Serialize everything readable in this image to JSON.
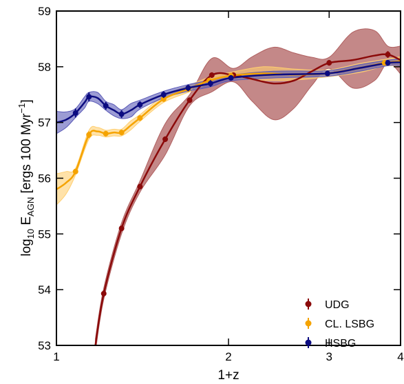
{
  "chart_data": {
    "type": "line",
    "title": "",
    "xlabel": "1+z",
    "ylabel": "log10 E_AGN [ergs 100 Myr^-1]",
    "ylabel_parts": {
      "pre": "log",
      "sub1": "10",
      "mid": " E",
      "sub2": "AGN",
      "unit": " [ergs 100 Myr",
      "sup": "−1",
      "close": "]"
    },
    "x_scale": "log",
    "xlim": [
      1,
      4
    ],
    "ylim": [
      53,
      59
    ],
    "x_ticks": [
      1,
      2,
      3,
      4
    ],
    "x_tick_labels": [
      "1",
      "2",
      "3",
      "4"
    ],
    "y_ticks": [
      53,
      54,
      55,
      56,
      57,
      58,
      59
    ],
    "y_tick_labels": [
      "53",
      "54",
      "55",
      "56",
      "57",
      "58",
      "59"
    ],
    "legend_position": "lower-right",
    "series": [
      {
        "name": "UDG",
        "color": "#8b0a0a",
        "band_color": "#b06060",
        "x": [
          1.21,
          1.3,
          1.4,
          1.55,
          1.71,
          1.87,
          2.04,
          3.0,
          3.8
        ],
        "y": [
          53.93,
          55.1,
          55.85,
          56.7,
          57.4,
          57.85,
          57.85,
          58.07,
          58.22
        ],
        "yerr": [
          0.06,
          0.05,
          0.05,
          0.05,
          0.05,
          0.05,
          0.05,
          0.05,
          0.06
        ],
        "curve_x": [
          1.17,
          1.21,
          1.3,
          1.4,
          1.55,
          1.71,
          1.87,
          2.04,
          2.2,
          2.4,
          2.6,
          2.8,
          3.0,
          3.3,
          3.6,
          3.8,
          4.0
        ],
        "curve_y": [
          53.0,
          53.93,
          55.1,
          55.85,
          56.7,
          57.4,
          57.85,
          57.85,
          57.78,
          57.7,
          57.75,
          57.92,
          58.07,
          58.12,
          58.2,
          58.22,
          58.12
        ],
        "band_half": [
          0.12,
          0.1,
          0.1,
          0.1,
          0.28,
          0.1,
          0.3,
          0.12,
          0.4,
          0.65,
          0.5,
          0.25,
          0.1,
          0.5,
          0.45,
          0.15,
          0.25
        ]
      },
      {
        "name": "CL. LSBG",
        "color": "#f5a300",
        "band_color": "#ffcf70",
        "x": [
          1.08,
          1.14,
          1.22,
          1.3,
          1.4,
          1.54,
          1.7,
          1.85,
          2.02,
          2.98,
          3.75
        ],
        "y": [
          56.12,
          56.78,
          56.8,
          56.82,
          57.08,
          57.42,
          57.6,
          57.75,
          57.84,
          57.88,
          58.07
        ],
        "yerr": [
          0.05,
          0.06,
          0.05,
          0.05,
          0.05,
          0.05,
          0.05,
          0.05,
          0.05,
          0.05,
          0.05
        ],
        "curve_x": [
          1.0,
          1.04,
          1.08,
          1.14,
          1.18,
          1.22,
          1.26,
          1.3,
          1.35,
          1.4,
          1.54,
          1.7,
          1.85,
          2.02,
          2.3,
          2.6,
          2.98,
          3.4,
          3.75,
          4.0
        ],
        "curve_y": [
          55.8,
          55.92,
          56.12,
          56.78,
          56.84,
          56.8,
          56.82,
          56.82,
          56.95,
          57.08,
          57.42,
          57.6,
          57.75,
          57.84,
          57.88,
          57.86,
          57.88,
          57.98,
          58.07,
          58.1
        ],
        "band_half": [
          0.28,
          0.2,
          0.06,
          0.08,
          0.07,
          0.06,
          0.06,
          0.06,
          0.08,
          0.06,
          0.06,
          0.06,
          0.06,
          0.06,
          0.12,
          0.1,
          0.06,
          0.08,
          0.06,
          0.08
        ]
      },
      {
        "name": "HSBG",
        "color": "#0b0b80",
        "band_color": "#5a5ab8",
        "x": [
          1.08,
          1.14,
          1.22,
          1.3,
          1.4,
          1.54,
          1.7,
          1.86,
          2.02,
          2.98,
          3.8
        ],
        "y": [
          57.17,
          57.46,
          57.3,
          57.15,
          57.32,
          57.5,
          57.62,
          57.7,
          57.8,
          57.88,
          58.07
        ],
        "yerr": [
          0.08,
          0.08,
          0.07,
          0.07,
          0.06,
          0.06,
          0.06,
          0.06,
          0.05,
          0.05,
          0.05
        ],
        "curve_x": [
          1.0,
          1.04,
          1.08,
          1.12,
          1.14,
          1.18,
          1.22,
          1.26,
          1.3,
          1.35,
          1.4,
          1.54,
          1.7,
          1.86,
          2.02,
          2.4,
          2.98,
          3.4,
          3.8,
          4.0
        ],
        "curve_y": [
          57.0,
          57.05,
          57.17,
          57.36,
          57.46,
          57.44,
          57.3,
          57.22,
          57.15,
          57.22,
          57.32,
          57.5,
          57.62,
          57.7,
          57.8,
          57.86,
          57.88,
          57.98,
          58.07,
          58.08
        ],
        "band_half": [
          0.2,
          0.14,
          0.08,
          0.1,
          0.08,
          0.1,
          0.08,
          0.1,
          0.08,
          0.12,
          0.08,
          0.06,
          0.06,
          0.06,
          0.05,
          0.06,
          0.05,
          0.06,
          0.05,
          0.06
        ]
      }
    ]
  }
}
